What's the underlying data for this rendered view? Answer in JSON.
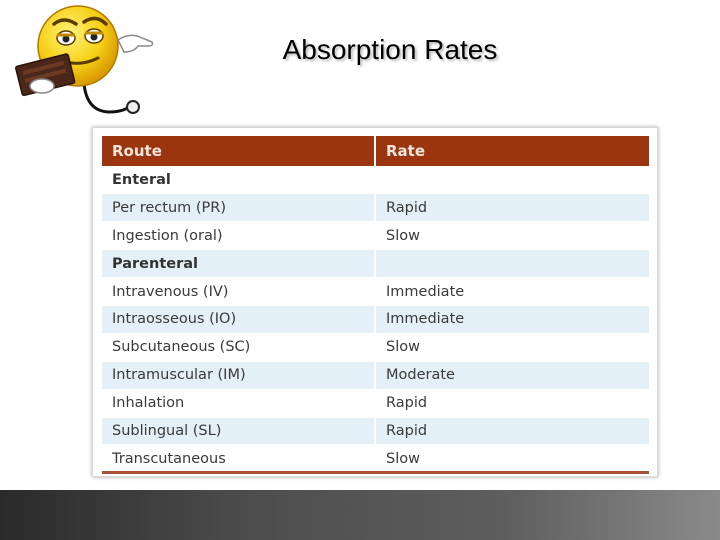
{
  "slide": {
    "title": "Absorption Rates"
  },
  "table": {
    "headers": {
      "route": "Route",
      "rate": "Rate"
    },
    "rows": [
      {
        "route": "Enteral",
        "rate": "",
        "group": true
      },
      {
        "route": "Per rectum (PR)",
        "rate": "Rapid",
        "group": false
      },
      {
        "route": "Ingestion (oral)",
        "rate": "Slow",
        "group": false
      },
      {
        "route": "Parenteral",
        "rate": "",
        "group": true
      },
      {
        "route": "Intravenous (IV)",
        "rate": "Immediate",
        "group": false
      },
      {
        "route": "Intraosseous (IO)",
        "rate": "Immediate",
        "group": false
      },
      {
        "route": "Subcutaneous (SC)",
        "rate": "Slow",
        "group": false
      },
      {
        "route": "Intramuscular (IM)",
        "rate": "Moderate",
        "group": false
      },
      {
        "route": "Inhalation",
        "rate": "Rapid",
        "group": false
      },
      {
        "route": "Sublingual (SL)",
        "rate": "Rapid",
        "group": false
      },
      {
        "route": "Transcutaneous",
        "rate": "Slow",
        "group": false
      }
    ]
  },
  "colors": {
    "header_bg": "#9b3510",
    "row_blue": "#e4f0f8",
    "row_white": "#ffffff"
  },
  "icons": {
    "mascot": "smiley-doctor-clipboard-stethoscope-icon"
  }
}
